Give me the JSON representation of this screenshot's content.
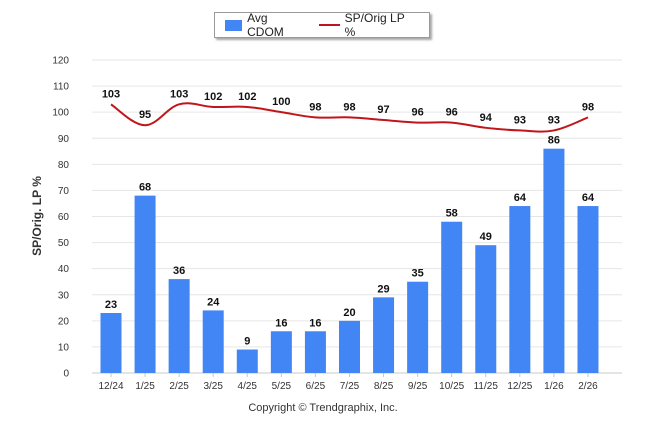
{
  "legend": {
    "bar_label": "Avg CDOM",
    "line_label": "SP/Orig LP %"
  },
  "copyright": "Copyright © Trendgraphix, Inc.",
  "colors": {
    "bar": "#4285f4",
    "line": "#c0161b",
    "grid": "#e6e6e6",
    "axis_text": "#333333",
    "label_text": "#111111"
  },
  "chart_data": {
    "type": "bar",
    "ylabel": "SP/Orig. LP %",
    "ylim": [
      0,
      120
    ],
    "yticks": [
      0,
      10,
      20,
      30,
      40,
      50,
      60,
      70,
      80,
      90,
      100,
      110,
      120
    ],
    "grid": true,
    "legend_position": "top-center",
    "categories": [
      "12/24",
      "1/25",
      "2/25",
      "3/25",
      "4/25",
      "5/25",
      "6/25",
      "7/25",
      "8/25",
      "9/25",
      "10/25",
      "11/25",
      "12/25",
      "1/26",
      "2/26"
    ],
    "series": [
      {
        "name": "Avg CDOM",
        "type": "bar",
        "values": [
          23,
          68,
          36,
          24,
          9,
          16,
          16,
          20,
          29,
          35,
          58,
          49,
          64,
          86,
          64
        ]
      },
      {
        "name": "SP/Orig LP %",
        "type": "line",
        "values": [
          103,
          95,
          103,
          102,
          102,
          100,
          98,
          98,
          97,
          96,
          96,
          94,
          93,
          93,
          98
        ]
      }
    ]
  }
}
